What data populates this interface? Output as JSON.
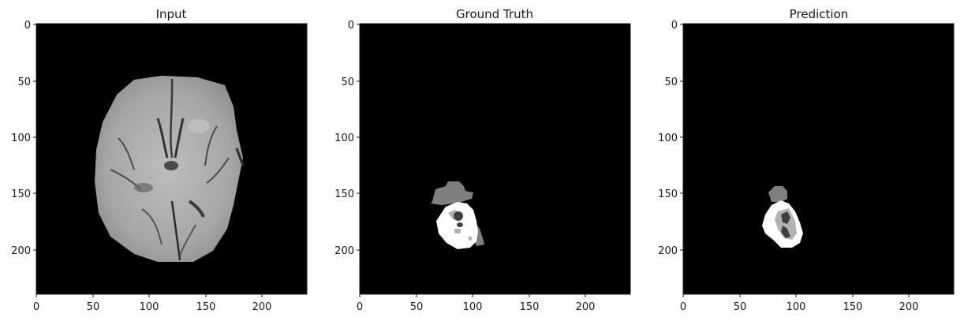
{
  "panels": [
    {
      "id": "input",
      "title": "Input",
      "image": "axial brain MRI slice (grayscale)",
      "xticks": [
        "0",
        "50",
        "100",
        "150",
        "200"
      ],
      "yticks": [
        "0",
        "50",
        "100",
        "150",
        "200"
      ]
    },
    {
      "id": "ground-truth",
      "title": "Ground Truth",
      "image": "tumor segmentation mask (grayscale classes)",
      "xticks": [
        "0",
        "50",
        "100",
        "150",
        "200"
      ],
      "yticks": [
        "0",
        "50",
        "100",
        "150",
        "200"
      ]
    },
    {
      "id": "prediction",
      "title": "Prediction",
      "image": "predicted tumor segmentation mask (grayscale classes)",
      "xticks": [
        "0",
        "50",
        "100",
        "150",
        "200"
      ],
      "yticks": [
        "0",
        "50",
        "100",
        "150",
        "200"
      ]
    }
  ],
  "colors": {
    "background": "#000000",
    "mask_white": "#ffffff",
    "mask_light_gray": "#b3b3b3",
    "mask_mid_gray": "#7f7f7f",
    "mask_dark_gray": "#3f3f3f"
  }
}
